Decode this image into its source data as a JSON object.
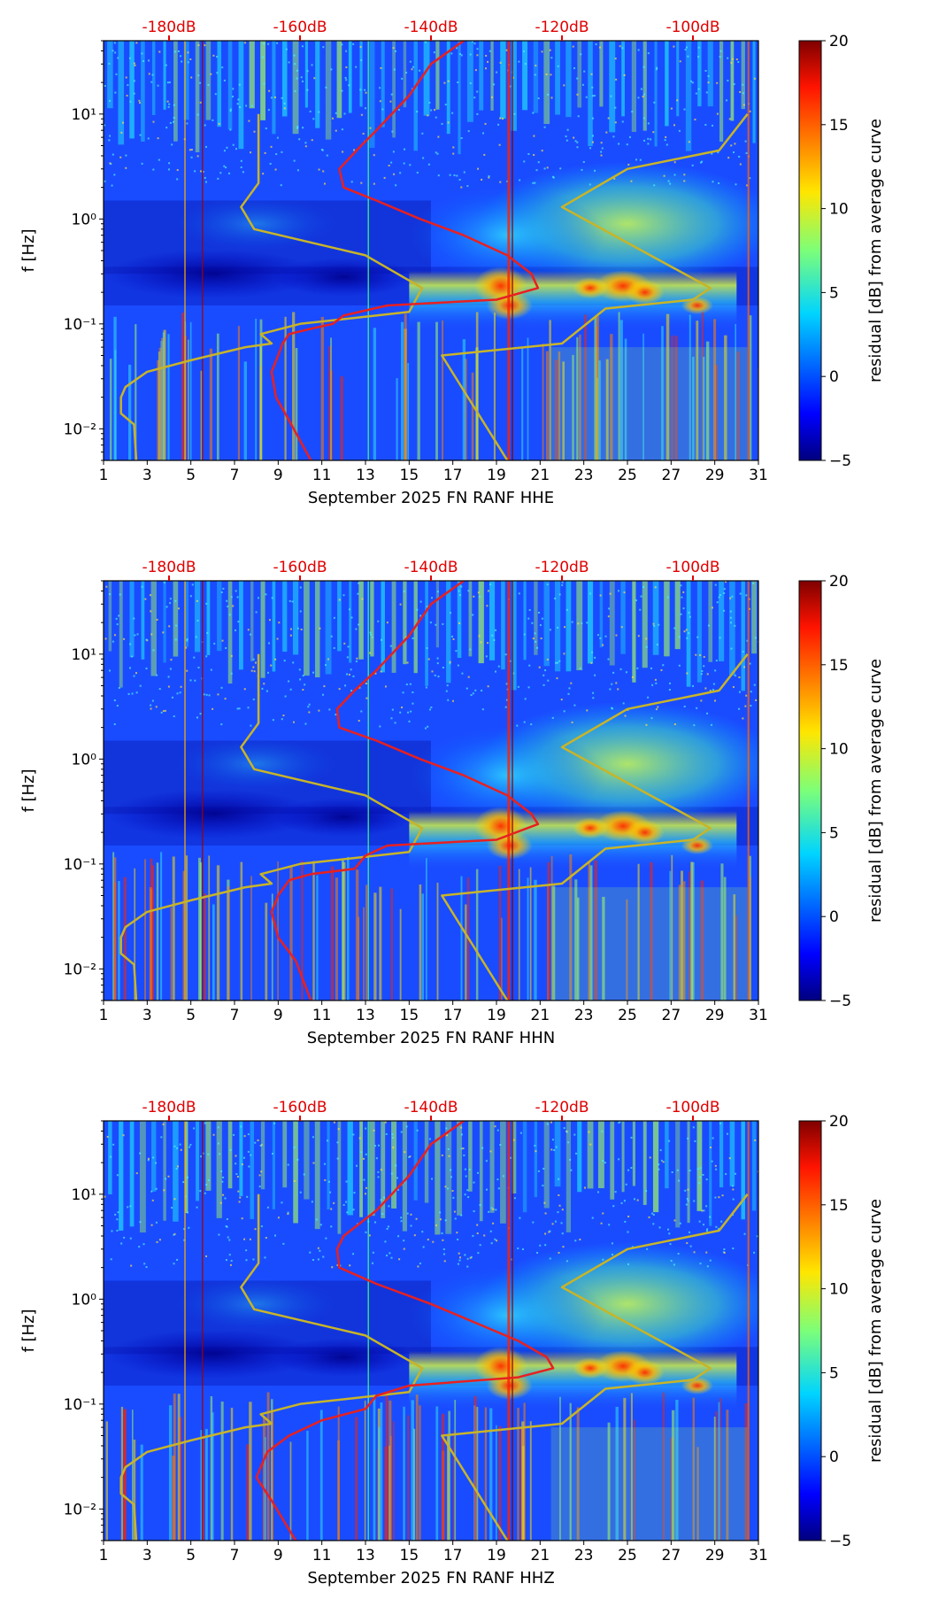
{
  "chart_data": [
    {
      "type": "heatmap",
      "id": "hhe",
      "xlabel": "September 2025 FN RANF  HHE",
      "ylabel": "f [Hz]",
      "x_range": [
        1,
        31
      ],
      "x_ticks": [
        "1",
        "3",
        "5",
        "7",
        "9",
        "11",
        "13",
        "15",
        "17",
        "19",
        "21",
        "23",
        "25",
        "27",
        "29",
        "31"
      ],
      "y_range_hz": [
        0.005,
        50
      ],
      "y_ticks": [
        {
          "label": "10⁻²",
          "value": 0.01
        },
        {
          "label": "10⁻¹",
          "value": 0.1
        },
        {
          "label": "10⁰",
          "value": 1
        },
        {
          "label": "10¹",
          "value": 10
        }
      ],
      "top_axis_ticks": [
        {
          "label": "-180dB",
          "x": 4.0
        },
        {
          "label": "-160dB",
          "x": 10.0
        },
        {
          "label": "-140dB",
          "x": 16.0
        },
        {
          "label": "-120dB",
          "x": 22.0
        },
        {
          "label": "-100dB",
          "x": 28.0
        }
      ],
      "colorbar": {
        "label": "residual [dB] from average curve",
        "range": [
          -5,
          20
        ],
        "ticks": [
          "−5",
          "0",
          "5",
          "10",
          "15",
          "20"
        ]
      },
      "series": [
        {
          "name": "model-curves",
          "color": "#c8b428",
          "points": [
            [
              8.1,
              10
            ],
            [
              8.1,
              2.2
            ],
            [
              7.3,
              1.3
            ],
            [
              7.9,
              0.8
            ],
            [
              13.0,
              0.45
            ],
            [
              15.6,
              0.22
            ],
            [
              15.0,
              0.13
            ],
            [
              10.0,
              0.1
            ],
            [
              8.2,
              0.08
            ],
            [
              8.7,
              0.065
            ],
            [
              7.5,
              0.06
            ],
            [
              5.0,
              0.045
            ],
            [
              3.0,
              0.035
            ],
            [
              2.0,
              0.025
            ],
            [
              1.8,
              0.02
            ],
            [
              1.8,
              0.014
            ],
            [
              2.4,
              0.011
            ],
            [
              2.5,
              0.005
            ]
          ]
        },
        {
          "name": "model-curves-high",
          "color": "#c8b428",
          "points": [
            [
              30.5,
              10
            ],
            [
              29.2,
              4.5
            ],
            [
              25.0,
              3.0
            ],
            [
              22.0,
              1.3
            ],
            [
              28.8,
              0.22
            ],
            [
              28.0,
              0.17
            ],
            [
              24.0,
              0.14
            ],
            [
              22.0,
              0.065
            ],
            [
              16.5,
              0.05
            ],
            [
              19.5,
              0.005
            ]
          ]
        },
        {
          "name": "average-psd",
          "color": "#e82020",
          "points": [
            [
              17.5,
              50
            ],
            [
              16.0,
              30
            ],
            [
              15.0,
              15
            ],
            [
              13.5,
              7
            ],
            [
              12.8,
              5
            ],
            [
              11.8,
              3.0
            ],
            [
              12.0,
              2.0
            ],
            [
              13.5,
              1.5
            ],
            [
              15.5,
              1.0
            ],
            [
              17.5,
              0.7
            ],
            [
              19.5,
              0.45
            ],
            [
              20.6,
              0.3
            ],
            [
              20.9,
              0.22
            ],
            [
              19.0,
              0.17
            ],
            [
              14.0,
              0.15
            ],
            [
              12.0,
              0.12
            ],
            [
              11.5,
              0.1
            ],
            [
              10.5,
              0.09
            ],
            [
              9.5,
              0.08
            ],
            [
              9.2,
              0.065
            ],
            [
              9.0,
              0.05
            ],
            [
              8.7,
              0.035
            ],
            [
              8.9,
              0.02
            ],
            [
              9.5,
              0.012
            ],
            [
              10.5,
              0.005
            ]
          ]
        }
      ]
    },
    {
      "type": "heatmap",
      "id": "hhn",
      "xlabel": "September 2025 FN RANF  HHN",
      "ylabel": "f [Hz]",
      "x_range": [
        1,
        31
      ],
      "x_ticks": [
        "1",
        "3",
        "5",
        "7",
        "9",
        "11",
        "13",
        "15",
        "17",
        "19",
        "21",
        "23",
        "25",
        "27",
        "29",
        "31"
      ],
      "y_range_hz": [
        0.005,
        50
      ],
      "y_ticks": [
        {
          "label": "10⁻²",
          "value": 0.01
        },
        {
          "label": "10⁻¹",
          "value": 0.1
        },
        {
          "label": "10⁰",
          "value": 1
        },
        {
          "label": "10¹",
          "value": 10
        }
      ],
      "top_axis_ticks": [
        {
          "label": "-180dB",
          "x": 4.0
        },
        {
          "label": "-160dB",
          "x": 10.0
        },
        {
          "label": "-140dB",
          "x": 16.0
        },
        {
          "label": "-120dB",
          "x": 22.0
        },
        {
          "label": "-100dB",
          "x": 28.0
        }
      ],
      "colorbar": {
        "label": "residual [dB] from average curve",
        "range": [
          -5,
          20
        ],
        "ticks": [
          "−5",
          "0",
          "5",
          "10",
          "15",
          "20"
        ]
      },
      "series": [
        {
          "name": "model-curves",
          "color": "#c8b428",
          "points": [
            [
              8.1,
              10
            ],
            [
              8.1,
              2.2
            ],
            [
              7.3,
              1.3
            ],
            [
              7.9,
              0.8
            ],
            [
              13.0,
              0.45
            ],
            [
              15.6,
              0.22
            ],
            [
              15.0,
              0.13
            ],
            [
              10.0,
              0.1
            ],
            [
              8.2,
              0.08
            ],
            [
              8.7,
              0.065
            ],
            [
              7.5,
              0.06
            ],
            [
              5.0,
              0.045
            ],
            [
              3.0,
              0.035
            ],
            [
              2.0,
              0.025
            ],
            [
              1.8,
              0.02
            ],
            [
              1.8,
              0.014
            ],
            [
              2.4,
              0.011
            ],
            [
              2.5,
              0.005
            ]
          ]
        },
        {
          "name": "model-curves-high",
          "color": "#c8b428",
          "points": [
            [
              30.5,
              10
            ],
            [
              29.2,
              4.5
            ],
            [
              25.0,
              3.0
            ],
            [
              22.0,
              1.3
            ],
            [
              28.8,
              0.22
            ],
            [
              28.0,
              0.17
            ],
            [
              24.0,
              0.14
            ],
            [
              22.0,
              0.065
            ],
            [
              16.5,
              0.05
            ],
            [
              19.5,
              0.005
            ]
          ]
        },
        {
          "name": "average-psd",
          "color": "#e82020",
          "points": [
            [
              17.5,
              50
            ],
            [
              16.0,
              30
            ],
            [
              15.0,
              15
            ],
            [
              13.5,
              7
            ],
            [
              12.5,
              4.5
            ],
            [
              11.7,
              3.0
            ],
            [
              11.8,
              2.0
            ],
            [
              13.5,
              1.5
            ],
            [
              15.5,
              1.0
            ],
            [
              17.5,
              0.7
            ],
            [
              19.5,
              0.45
            ],
            [
              20.6,
              0.3
            ],
            [
              20.9,
              0.24
            ],
            [
              19.0,
              0.17
            ],
            [
              14.0,
              0.15
            ],
            [
              13.0,
              0.12
            ],
            [
              12.5,
              0.09
            ],
            [
              10.5,
              0.08
            ],
            [
              9.5,
              0.07
            ],
            [
              9.0,
              0.05
            ],
            [
              8.7,
              0.035
            ],
            [
              9.0,
              0.02
            ],
            [
              9.8,
              0.012
            ],
            [
              10.5,
              0.005
            ]
          ]
        }
      ]
    },
    {
      "type": "heatmap",
      "id": "hhz",
      "xlabel": "September 2025 FN RANF  HHZ",
      "ylabel": "f [Hz]",
      "x_range": [
        1,
        31
      ],
      "x_ticks": [
        "1",
        "3",
        "5",
        "7",
        "9",
        "11",
        "13",
        "15",
        "17",
        "19",
        "21",
        "23",
        "25",
        "27",
        "29",
        "31"
      ],
      "y_range_hz": [
        0.005,
        50
      ],
      "y_ticks": [
        {
          "label": "10⁻²",
          "value": 0.01
        },
        {
          "label": "10⁻¹",
          "value": 0.1
        },
        {
          "label": "10⁰",
          "value": 1
        },
        {
          "label": "10¹",
          "value": 10
        }
      ],
      "top_axis_ticks": [
        {
          "label": "-180dB",
          "x": 4.0
        },
        {
          "label": "-160dB",
          "x": 10.0
        },
        {
          "label": "-140dB",
          "x": 16.0
        },
        {
          "label": "-120dB",
          "x": 22.0
        },
        {
          "label": "-100dB",
          "x": 28.0
        }
      ],
      "colorbar": {
        "label": "residual [dB] from average curve",
        "range": [
          -5,
          20
        ],
        "ticks": [
          "−5",
          "0",
          "5",
          "10",
          "15",
          "20"
        ]
      },
      "series": [
        {
          "name": "model-curves",
          "color": "#c8b428",
          "points": [
            [
              8.1,
              10
            ],
            [
              8.1,
              2.2
            ],
            [
              7.3,
              1.3
            ],
            [
              7.9,
              0.8
            ],
            [
              13.0,
              0.45
            ],
            [
              15.6,
              0.22
            ],
            [
              15.0,
              0.13
            ],
            [
              10.0,
              0.1
            ],
            [
              8.2,
              0.08
            ],
            [
              8.7,
              0.065
            ],
            [
              7.5,
              0.06
            ],
            [
              5.0,
              0.045
            ],
            [
              3.0,
              0.035
            ],
            [
              2.0,
              0.025
            ],
            [
              1.8,
              0.02
            ],
            [
              1.8,
              0.014
            ],
            [
              2.4,
              0.011
            ],
            [
              2.5,
              0.005
            ]
          ]
        },
        {
          "name": "model-curves-high",
          "color": "#c8b428",
          "points": [
            [
              30.5,
              10
            ],
            [
              29.2,
              4.5
            ],
            [
              25.0,
              3.0
            ],
            [
              22.0,
              1.3
            ],
            [
              28.8,
              0.22
            ],
            [
              28.0,
              0.17
            ],
            [
              24.0,
              0.14
            ],
            [
              22.0,
              0.065
            ],
            [
              16.5,
              0.05
            ],
            [
              19.5,
              0.005
            ]
          ]
        },
        {
          "name": "average-psd",
          "color": "#e82020",
          "points": [
            [
              17.5,
              50
            ],
            [
              16.0,
              30
            ],
            [
              15.0,
              15
            ],
            [
              13.5,
              7
            ],
            [
              12.0,
              4.0
            ],
            [
              11.7,
              3.0
            ],
            [
              11.8,
              2.0
            ],
            [
              13.5,
              1.4
            ],
            [
              16.0,
              0.9
            ],
            [
              18.0,
              0.6
            ],
            [
              20.0,
              0.4
            ],
            [
              21.3,
              0.28
            ],
            [
              21.6,
              0.22
            ],
            [
              20.0,
              0.18
            ],
            [
              15.0,
              0.15
            ],
            [
              13.5,
              0.12
            ],
            [
              13.0,
              0.09
            ],
            [
              11.0,
              0.07
            ],
            [
              9.5,
              0.05
            ],
            [
              8.5,
              0.035
            ],
            [
              8.0,
              0.02
            ],
            [
              8.7,
              0.012
            ],
            [
              9.8,
              0.005
            ]
          ]
        }
      ]
    }
  ]
}
